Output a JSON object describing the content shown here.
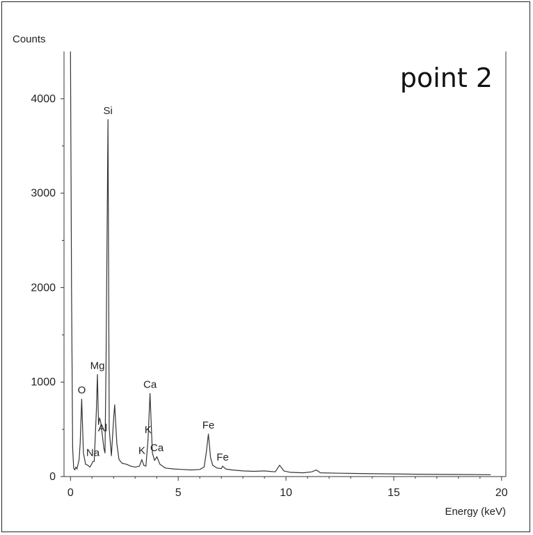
{
  "chart_data": {
    "type": "line",
    "panel_label": "point 2",
    "xlabel": "Energy (keV)",
    "ylabel": "Counts",
    "xlim": [
      -0.3,
      20.2
    ],
    "ylim": [
      0,
      4500
    ],
    "x_ticks": [
      "0",
      "5",
      "10",
      "15",
      "20"
    ],
    "x_tick_values": [
      0,
      5,
      10,
      15,
      20
    ],
    "y_ticks": [
      "0",
      "1000",
      "2000",
      "3000",
      "4000"
    ],
    "y_tick_values": [
      0,
      1000,
      2000,
      3000,
      4000
    ],
    "series": [
      {
        "x": [
          0.0,
          0.05,
          0.1,
          0.15,
          0.2,
          0.25,
          0.3,
          0.4,
          0.45,
          0.52,
          0.6,
          0.7,
          0.8,
          0.9,
          1.0,
          1.04,
          1.1,
          1.2,
          1.25,
          1.3,
          1.35,
          1.4,
          1.49,
          1.55,
          1.6,
          1.65,
          1.74,
          1.8,
          1.9,
          2.0,
          2.05,
          2.15,
          2.25,
          2.4,
          2.6,
          2.8,
          3.0,
          3.2,
          3.31,
          3.4,
          3.5,
          3.6,
          3.69,
          3.8,
          3.9,
          4.01,
          4.15,
          4.4,
          4.8,
          5.2,
          5.6,
          6.0,
          6.2,
          6.3,
          6.4,
          6.5,
          6.6,
          6.8,
          7.0,
          7.06,
          7.2,
          7.5,
          8.0,
          8.5,
          9.0,
          9.5,
          9.7,
          9.9,
          10.2,
          10.8,
          11.2,
          11.4,
          11.6,
          12.5,
          14.0,
          16.0,
          18.0,
          19.5
        ],
        "y": [
          4600,
          2000,
          300,
          90,
          70,
          100,
          80,
          180,
          350,
          820,
          250,
          130,
          120,
          100,
          140,
          160,
          160,
          700,
          1080,
          550,
          620,
          580,
          420,
          300,
          250,
          1200,
          3780,
          500,
          220,
          600,
          760,
          350,
          180,
          140,
          130,
          110,
          100,
          110,
          180,
          120,
          110,
          400,
          880,
          250,
          170,
          210,
          130,
          90,
          80,
          75,
          70,
          75,
          100,
          250,
          450,
          200,
          120,
          90,
          85,
          110,
          80,
          70,
          60,
          55,
          60,
          50,
          120,
          60,
          45,
          40,
          50,
          70,
          40,
          35,
          30,
          25,
          22,
          20
        ]
      }
    ],
    "annotations": [
      {
        "label": "Si",
        "x": 1.74,
        "y": 3780
      },
      {
        "label": "Mg",
        "x": 1.25,
        "y": 1080
      },
      {
        "label": "O",
        "x": 0.52,
        "y": 820
      },
      {
        "label": "Al",
        "x": 1.49,
        "y": 420
      },
      {
        "label": "Na",
        "x": 1.04,
        "y": 160
      },
      {
        "label": "Ca",
        "x": 3.69,
        "y": 880
      },
      {
        "label": "Ca",
        "x": 4.01,
        "y": 210
      },
      {
        "label": "K",
        "x": 3.31,
        "y": 180
      },
      {
        "label": "K",
        "x": 3.6,
        "y": 400
      },
      {
        "label": "Fe",
        "x": 6.4,
        "y": 450
      },
      {
        "label": "Fe",
        "x": 7.06,
        "y": 110
      }
    ],
    "grid": false,
    "legend": "none"
  }
}
